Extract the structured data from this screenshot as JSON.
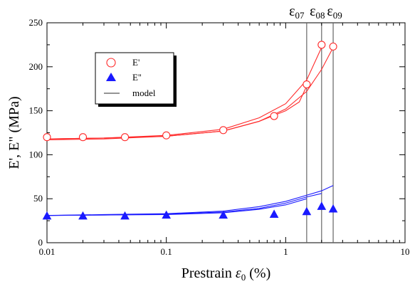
{
  "chart_data": {
    "type": "scatter",
    "title": "",
    "xlabel": "Prestrain ε0 (%)",
    "xlabel_main": "Prestrain ",
    "xlabel_symbol": "ε",
    "xlabel_sub": "0",
    "xlabel_unit": " (%)",
    "ylabel": "E', E\"  (MPa)",
    "xscale": "log",
    "xlim": [
      0.01,
      10
    ],
    "ylim": [
      0,
      250
    ],
    "xticks": [
      0.01,
      0.1,
      1,
      10
    ],
    "xtick_labels": [
      "0.01",
      "0.1",
      "1",
      "10"
    ],
    "yticks": [
      0,
      50,
      100,
      150,
      200,
      250
    ],
    "ytick_labels": [
      "0",
      "50",
      "100",
      "150",
      "200",
      "250"
    ],
    "grid": false,
    "legend_position": "top-left",
    "colors": {
      "storage": "#ff2a2a",
      "loss": "#1a1aff",
      "model": "#555555",
      "vline": "#666666"
    },
    "series": [
      {
        "name": "E'",
        "marker": "open-circle",
        "x": [
          0.01,
          0.02,
          0.045,
          0.1,
          0.3,
          0.8,
          1.5,
          2.0,
          2.5
        ],
        "y": [
          120,
          120,
          120,
          122,
          128,
          144,
          180,
          225,
          223
        ]
      },
      {
        "name": "E''",
        "marker": "filled-triangle",
        "x": [
          0.01,
          0.02,
          0.045,
          0.1,
          0.3,
          0.8,
          1.5,
          2.0,
          2.5
        ],
        "y": [
          30,
          30,
          30,
          31,
          31,
          32,
          35,
          41,
          38
        ]
      },
      {
        "name": "model",
        "marker": "line",
        "curves": [
          {
            "color_key": "storage",
            "x": [
              0.01,
              0.03,
              0.1,
              0.3,
              0.6,
              1.0,
              1.3,
              1.5
            ],
            "y": [
              117,
              118,
              121,
              127,
              138,
              150,
              160,
              178
            ]
          },
          {
            "color_key": "storage",
            "x": [
              0.01,
              0.03,
              0.1,
              0.3,
              0.6,
              1.0,
              1.5,
              2.0
            ],
            "y": [
              118,
              119,
              122,
              129,
              142,
              158,
              185,
              222
            ]
          },
          {
            "color_key": "storage",
            "x": [
              0.01,
              0.03,
              0.1,
              0.3,
              0.6,
              1.0,
              1.5,
              2.0,
              2.5
            ],
            "y": [
              118,
              119,
              121,
              127,
              138,
              152,
              172,
              197,
              222
            ]
          },
          {
            "color_key": "loss",
            "x": [
              0.01,
              0.03,
              0.1,
              0.3,
              0.6,
              1.0,
              1.5
            ],
            "y": [
              31,
              31.5,
              32,
              34,
              38,
              43,
              50
            ]
          },
          {
            "color_key": "loss",
            "x": [
              0.01,
              0.03,
              0.1,
              0.3,
              0.6,
              1.0,
              1.5,
              2.0
            ],
            "y": [
              31,
              31.5,
              32.5,
              35,
              39,
              45,
              52,
              56
            ]
          },
          {
            "color_key": "loss",
            "x": [
              0.01,
              0.03,
              0.1,
              0.3,
              0.6,
              1.0,
              1.5,
              2.0,
              2.5
            ],
            "y": [
              31,
              32,
              33,
              36,
              41,
              47,
              54,
              59,
              65
            ]
          }
        ]
      }
    ],
    "vertical_lines": [
      {
        "x": 1.5,
        "label": "ε",
        "sub": "07"
      },
      {
        "x": 2.0,
        "label": "ε",
        "sub": "08"
      },
      {
        "x": 2.5,
        "label": "ε",
        "sub": "09"
      }
    ]
  }
}
